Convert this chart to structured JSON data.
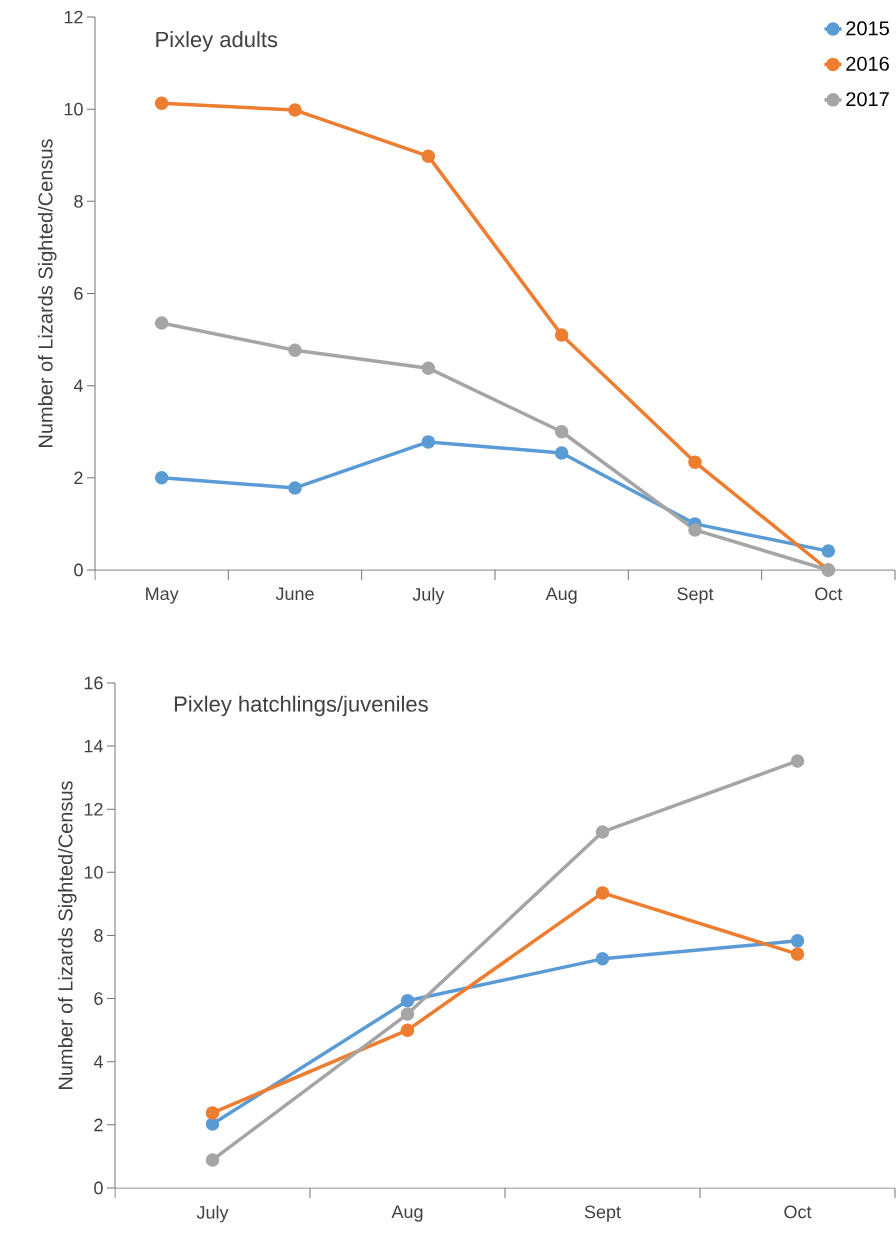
{
  "chart_data": [
    {
      "type": "line",
      "title": "Pixley adults",
      "ylabel": "Number of Lizards Sighted/Census",
      "categories": [
        "May",
        "June",
        "July",
        "Aug",
        "Sept",
        "Oct"
      ],
      "series": [
        {
          "name": "2015",
          "color": "#5b9bd5",
          "values": [
            2.0,
            1.78,
            2.78,
            2.54,
            1.0,
            0.41
          ]
        },
        {
          "name": "2016",
          "color": "#ed7d31",
          "values": [
            10.13,
            9.98,
            8.98,
            5.1,
            2.34,
            0
          ]
        },
        {
          "name": "2017",
          "color": "#a5a5a5",
          "values": [
            5.36,
            4.77,
            4.38,
            3.0,
            0.87,
            0
          ]
        }
      ],
      "ylim": [
        0,
        12
      ],
      "yticks": [
        0,
        2,
        4,
        6,
        8,
        10,
        12
      ],
      "legend": "top right",
      "marker": "circle"
    },
    {
      "type": "line",
      "title": "Pixley hatchlings/juveniles",
      "ylabel": "Number of Lizards Sighted/Census",
      "categories": [
        "July",
        "Aug",
        "Sept",
        "Oct"
      ],
      "series": [
        {
          "color": "#5b9bd5",
          "values": [
            2.03,
            5.93,
            7.26,
            7.83
          ]
        },
        {
          "color": "#ed7d31",
          "values": [
            2.38,
            5.0,
            9.35,
            7.41
          ]
        },
        {
          "color": "#a5a5a5",
          "values": [
            0.89,
            5.51,
            11.28,
            13.53
          ]
        }
      ],
      "ylim": [
        0,
        16
      ],
      "yticks": [
        0,
        2,
        4,
        6,
        8,
        10,
        12,
        14,
        16
      ],
      "legend": false,
      "marker": "circle"
    }
  ]
}
